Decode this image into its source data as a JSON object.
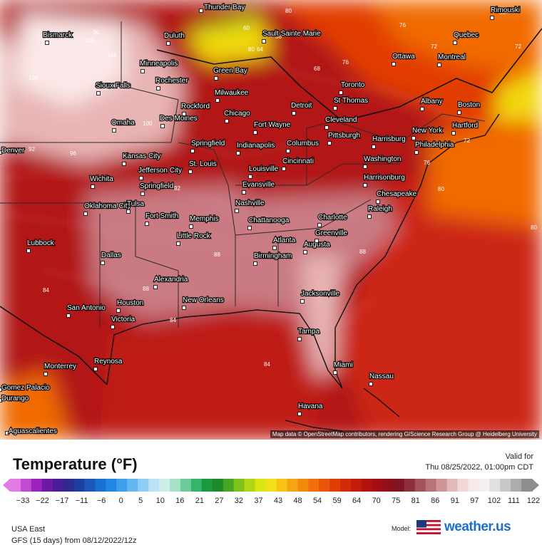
{
  "map": {
    "attribution": "Map data © OpenStreetMap contributors, rendering GIScience Research Group @ Heidelberg University",
    "cities": [
      {
        "name": "Bismarck"
      },
      {
        "name": "Minneapolis"
      },
      {
        "name": "Sioux Falls"
      },
      {
        "name": "Rochester"
      },
      {
        "name": "Omaha"
      },
      {
        "name": "Des Moines"
      },
      {
        "name": "Duluth"
      },
      {
        "name": "Green Bay"
      },
      {
        "name": "Milwaukee"
      },
      {
        "name": "Rockford"
      },
      {
        "name": "Chicago"
      },
      {
        "name": "Thunder Bay"
      },
      {
        "name": "Sault Sainte Marie"
      },
      {
        "name": "Detroit"
      },
      {
        "name": "Fort Wayne"
      },
      {
        "name": "Toronto"
      },
      {
        "name": "St Thomas"
      },
      {
        "name": "Cleveland"
      },
      {
        "name": "Pittsburgh"
      },
      {
        "name": "Columbus"
      },
      {
        "name": "Indianapolis"
      },
      {
        "name": "Springfield"
      },
      {
        "name": "Kansas City"
      },
      {
        "name": "St. Louis"
      },
      {
        "name": "Jefferson City"
      },
      {
        "name": "Cincinnati"
      },
      {
        "name": "Louisville"
      },
      {
        "name": "Evansville"
      },
      {
        "name": "Wichita"
      },
      {
        "name": "Springfield"
      },
      {
        "name": "Oklahoma City"
      },
      {
        "name": "Tulsa"
      },
      {
        "name": "Fort Smith"
      },
      {
        "name": "Memphis"
      },
      {
        "name": "Nashville"
      },
      {
        "name": "Chattanooga"
      },
      {
        "name": "Little Rock"
      },
      {
        "name": "Atlanta"
      },
      {
        "name": "Birmingham"
      },
      {
        "name": "Augusta"
      },
      {
        "name": "Greenville"
      },
      {
        "name": "Charlotte"
      },
      {
        "name": "Raleigh"
      },
      {
        "name": "Chesapeake"
      },
      {
        "name": "Harrisonburg"
      },
      {
        "name": "Washington"
      },
      {
        "name": "Harrisburg"
      },
      {
        "name": "Philadelphia"
      },
      {
        "name": "New York"
      },
      {
        "name": "Hartford"
      },
      {
        "name": "Boston"
      },
      {
        "name": "Albany"
      },
      {
        "name": "Montreal"
      },
      {
        "name": "Ottawa"
      },
      {
        "name": "Quebec"
      },
      {
        "name": "Rimouski"
      },
      {
        "name": "Lubbock"
      },
      {
        "name": "Dallas"
      },
      {
        "name": "Alexandria"
      },
      {
        "name": "San Antonio"
      },
      {
        "name": "Houston"
      },
      {
        "name": "Victoria"
      },
      {
        "name": "New Orleans"
      },
      {
        "name": "Jacksonville"
      },
      {
        "name": "Tampa"
      },
      {
        "name": "Miami"
      },
      {
        "name": "Nassau"
      },
      {
        "name": "Havana"
      },
      {
        "name": "Monterrey"
      },
      {
        "name": "Reynosa"
      },
      {
        "name": "Gomez Palacio"
      },
      {
        "name": "Durango"
      },
      {
        "name": "Aguascalientes"
      },
      {
        "name": "Denver"
      }
    ],
    "contour_labels": [
      {
        "value": "104"
      },
      {
        "value": "104"
      },
      {
        "value": "104"
      },
      {
        "value": "100"
      },
      {
        "value": "96"
      },
      {
        "value": "96"
      },
      {
        "value": "92"
      },
      {
        "value": "92"
      },
      {
        "value": "88"
      },
      {
        "value": "88"
      },
      {
        "value": "84"
      },
      {
        "value": "84"
      },
      {
        "value": "84"
      },
      {
        "value": "80"
      },
      {
        "value": "80"
      },
      {
        "value": "76"
      },
      {
        "value": "76"
      },
      {
        "value": "72"
      },
      {
        "value": "72"
      },
      {
        "value": "68"
      },
      {
        "value": "68"
      },
      {
        "value": "64"
      },
      {
        "value": "60"
      },
      {
        "value": "56"
      },
      {
        "value": "80"
      },
      {
        "value": "80"
      },
      {
        "value": "88"
      },
      {
        "value": "72"
      },
      {
        "value": "76"
      }
    ],
    "temp_colors": {
      "max": "#fbe8e8",
      "hot": "#e8b4b4",
      "warm": "#c97a82",
      "red": "#b21818",
      "red2": "#c42a10",
      "orange": "#e23e06",
      "orange2": "#f06a04",
      "yellow": "#f2d80a",
      "green": "#8ed21a",
      "ocean": "#cc2612",
      "gulf": "#bf1e14"
    }
  },
  "legend": {
    "title": "Temperature (°F)",
    "valid_label": "Valid for",
    "valid_time": "Thu 08/25/2022, 01:00pm CDT",
    "tick_labels": [
      "−33",
      "−22",
      "−17",
      "−11",
      "−6",
      "0",
      "5",
      "10",
      "16",
      "21",
      "27",
      "32",
      "37",
      "43",
      "48",
      "54",
      "59",
      "64",
      "70",
      "75",
      "81",
      "86",
      "91",
      "97",
      "102",
      "111",
      "122"
    ],
    "colors": [
      "#e37be5",
      "#c04ad2",
      "#9b22c0",
      "#6e18a6",
      "#4b1c97",
      "#2e2a8e",
      "#1e3fa2",
      "#1958b9",
      "#1870d0",
      "#2187e3",
      "#3e9fec",
      "#64b7f2",
      "#8fcdf5",
      "#b9e2f5",
      "#cdeee8",
      "#a6e0c6",
      "#6ccb9a",
      "#38b36b",
      "#1a9a3e",
      "#1d8a2a",
      "#46a624",
      "#7dc31c",
      "#b2d614",
      "#dce514",
      "#f4e01a",
      "#f6c316",
      "#f4a512",
      "#f38a10",
      "#f06e0c",
      "#ea5509",
      "#e03d07",
      "#d22a07",
      "#c31c0b",
      "#b3130f",
      "#a10f14",
      "#90101a",
      "#7f1424",
      "#8e2f3a",
      "#a4535b",
      "#b97378",
      "#ce9496",
      "#e2b8b9",
      "#f0d6d6",
      "#f7e9ea",
      "#f4f0f0",
      "#e2e0e0",
      "#c9c7c7",
      "#adabab",
      "#8f8d8d"
    ],
    "region": "USA East",
    "model_run": "GFS (15 days) from  08/12/2022/12z",
    "model_label": "Model:",
    "brand": "weather.us"
  }
}
